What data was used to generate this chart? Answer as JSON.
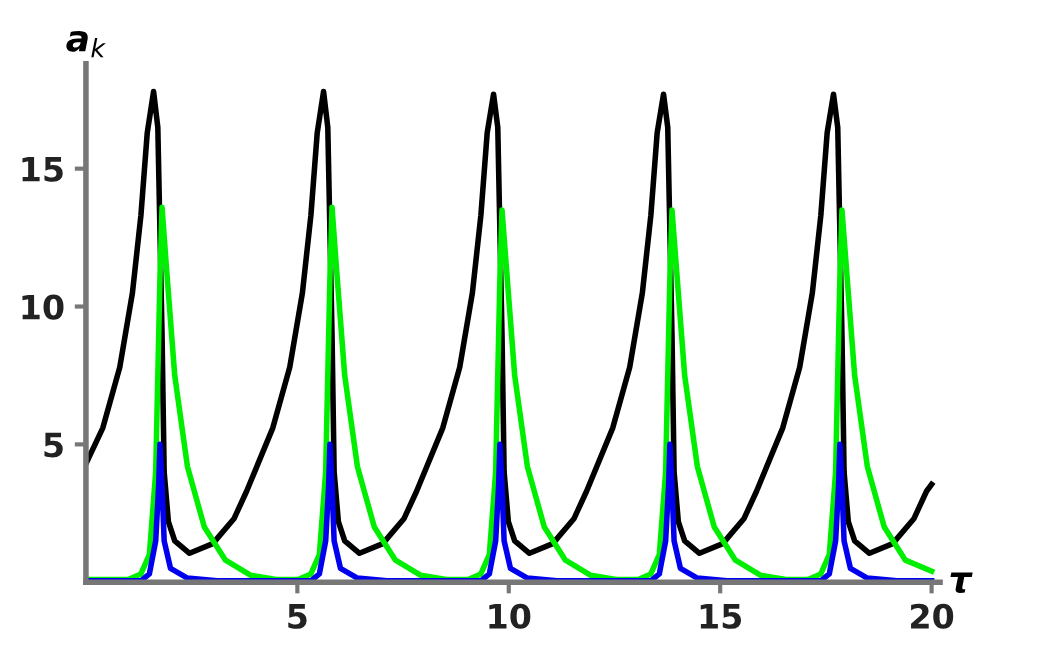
{
  "chart_data": {
    "type": "line",
    "xlabel": "τ",
    "ylabel": "a$_{k}$",
    "xlim": [
      0,
      20.2
    ],
    "ylim": [
      0,
      18.8
    ],
    "xticks": [
      5,
      10,
      15,
      20
    ],
    "yticks": [
      5,
      10,
      15
    ],
    "grid": false,
    "marker": "none",
    "line_style": "solid",
    "series": [
      {
        "color": "#000000",
        "x": [
          0,
          0.4,
          0.8,
          1.1,
          1.3,
          1.45,
          1.6,
          1.7,
          1.8,
          1.85,
          1.95,
          2.1,
          2.45,
          3.0,
          3.5,
          3.8,
          4.42,
          4.82,
          5.12,
          5.32,
          5.47,
          5.62,
          5.72,
          5.82,
          5.87,
          5.97,
          6.12,
          6.47,
          7.02,
          7.52,
          7.82,
          8.44,
          8.84,
          9.14,
          9.34,
          9.49,
          9.64,
          9.74,
          9.84,
          9.89,
          9.99,
          10.14,
          10.49,
          11.04,
          11.54,
          11.84,
          12.46,
          12.86,
          13.16,
          13.36,
          13.51,
          13.66,
          13.76,
          13.86,
          13.91,
          14.01,
          14.16,
          14.51,
          15.06,
          15.56,
          15.86,
          16.48,
          16.88,
          17.18,
          17.38,
          17.53,
          17.68,
          17.78,
          17.88,
          17.93,
          18.03,
          18.18,
          18.53,
          19.08,
          19.58,
          19.88,
          20
        ],
        "values": [
          4.3,
          5.6,
          7.8,
          10.5,
          13.3,
          16.3,
          17.8,
          16.5,
          9.0,
          4.0,
          2.2,
          1.5,
          1.05,
          1.4,
          2.3,
          3.3,
          5.6,
          7.8,
          10.5,
          13.3,
          16.3,
          17.8,
          16.5,
          9.0,
          4.0,
          2.2,
          1.5,
          1.05,
          1.4,
          2.3,
          3.3,
          5.6,
          7.8,
          10.5,
          13.3,
          16.3,
          17.7,
          16.5,
          9.0,
          4.0,
          2.2,
          1.5,
          1.05,
          1.4,
          2.3,
          3.3,
          5.6,
          7.8,
          10.5,
          13.3,
          16.3,
          17.7,
          16.5,
          9.0,
          4.0,
          2.2,
          1.5,
          1.05,
          1.4,
          2.3,
          3.3,
          5.6,
          7.8,
          10.5,
          13.3,
          16.3,
          17.7,
          16.5,
          9.0,
          4.0,
          2.2,
          1.5,
          1.05,
          1.4,
          2.3,
          3.3,
          3.55
        ]
      },
      {
        "color": "#00ee00",
        "x": [
          0,
          1.0,
          1.3,
          1.5,
          1.65,
          1.75,
          1.8,
          1.9,
          2.1,
          2.4,
          2.8,
          3.3,
          3.9,
          4.5,
          5.02,
          5.32,
          5.52,
          5.67,
          5.77,
          5.82,
          5.92,
          6.12,
          6.42,
          6.82,
          7.32,
          7.92,
          8.52,
          9.04,
          9.34,
          9.54,
          9.69,
          9.79,
          9.84,
          9.94,
          10.14,
          10.44,
          10.84,
          11.34,
          11.94,
          12.54,
          13.06,
          13.36,
          13.56,
          13.71,
          13.81,
          13.86,
          13.96,
          14.16,
          14.46,
          14.86,
          15.36,
          15.96,
          16.56,
          17.08,
          17.38,
          17.58,
          17.73,
          17.83,
          17.88,
          17.98,
          18.18,
          18.48,
          18.88,
          19.38,
          20
        ],
        "values": [
          0.1,
          0.1,
          0.3,
          1.0,
          4,
          11,
          13.6,
          11.5,
          7.5,
          4.2,
          2.0,
          0.8,
          0.25,
          0.1,
          0.1,
          0.3,
          1.0,
          4,
          11,
          13.6,
          11.5,
          7.5,
          4.2,
          2.0,
          0.8,
          0.25,
          0.1,
          0.1,
          0.3,
          1.0,
          4,
          11,
          13.5,
          11.5,
          7.5,
          4.2,
          2.0,
          0.8,
          0.25,
          0.1,
          0.1,
          0.3,
          1.0,
          4,
          11,
          13.5,
          11.5,
          7.5,
          4.2,
          2.0,
          0.8,
          0.25,
          0.1,
          0.1,
          0.3,
          1.0,
          4,
          11,
          13.5,
          11.5,
          7.5,
          4.2,
          2.0,
          0.8,
          0.4
        ]
      },
      {
        "color": "#0000ee",
        "x": [
          0,
          1.3,
          1.5,
          1.65,
          1.72,
          1.75,
          1.8,
          1.85,
          2.0,
          2.4,
          3.1,
          5.32,
          5.52,
          5.67,
          5.74,
          5.77,
          5.82,
          5.87,
          6.02,
          6.42,
          7.12,
          9.34,
          9.54,
          9.69,
          9.76,
          9.79,
          9.84,
          9.89,
          10.04,
          10.44,
          11.14,
          13.36,
          13.56,
          13.71,
          13.78,
          13.81,
          13.86,
          13.91,
          14.06,
          14.46,
          15.16,
          17.38,
          17.58,
          17.73,
          17.8,
          17.83,
          17.88,
          17.93,
          18.08,
          18.48,
          19.18,
          20
        ],
        "values": [
          0.05,
          0.05,
          0.3,
          1.5,
          3.5,
          5.0,
          3.5,
          1.5,
          0.5,
          0.15,
          0.05,
          0.05,
          0.3,
          1.5,
          3.5,
          5.0,
          3.5,
          1.5,
          0.5,
          0.15,
          0.05,
          0.05,
          0.3,
          1.5,
          3.5,
          5.0,
          3.5,
          1.5,
          0.5,
          0.15,
          0.05,
          0.05,
          0.3,
          1.5,
          3.5,
          5.0,
          3.5,
          1.5,
          0.5,
          0.15,
          0.05,
          0.05,
          0.3,
          1.5,
          3.5,
          5.0,
          3.5,
          1.5,
          0.5,
          0.15,
          0.05,
          0.05
        ]
      }
    ]
  }
}
